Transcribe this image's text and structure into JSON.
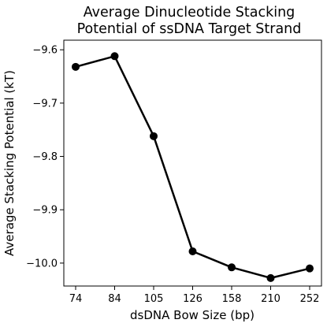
{
  "chart_data": {
    "type": "line",
    "title_lines": [
      "Average Dinucleotide Stacking",
      "Potential of ssDNA Target Strand"
    ],
    "xlabel": "dsDNA Bow Size (bp)",
    "ylabel": "Average Stacking Potential (kT)",
    "categories": [
      "74",
      "84",
      "105",
      "126",
      "158",
      "210",
      "252"
    ],
    "series": [
      {
        "values": [
          -9.632,
          -9.612,
          -9.762,
          -9.978,
          -10.008,
          -10.028,
          -10.01
        ]
      }
    ],
    "yticks": [
      -9.6,
      -9.7,
      -9.8,
      -9.9,
      -10.0
    ],
    "ytick_labels": [
      "−9.6",
      "−9.7",
      "−9.8",
      "−9.9",
      "−10.0"
    ],
    "ylim": [
      -10.043,
      -9.582
    ],
    "grid": false,
    "line_color": "#000000",
    "marker": "circle"
  }
}
